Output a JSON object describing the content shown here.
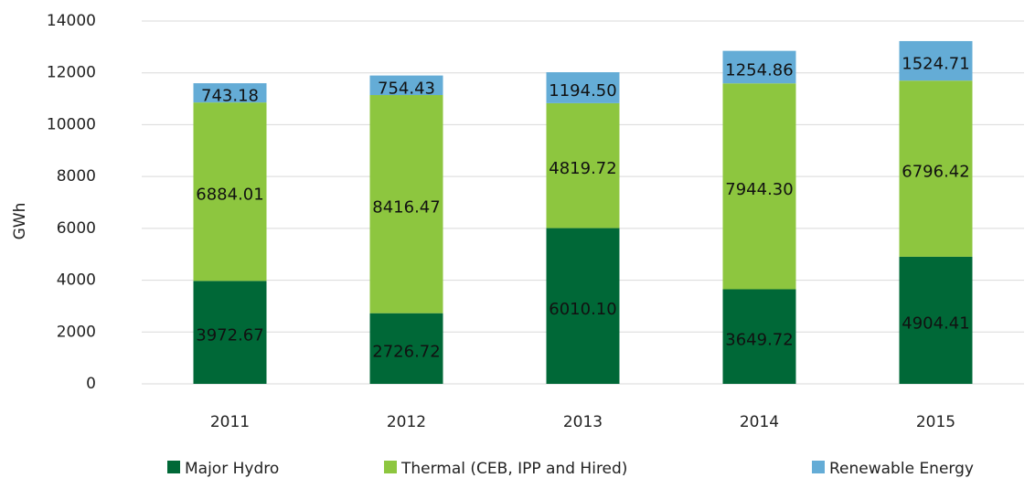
{
  "chart_data": {
    "type": "stacked_bar",
    "y_label": "GWh",
    "categories": [
      "2011",
      "2012",
      "2013",
      "2014",
      "2015"
    ],
    "series": [
      {
        "name": "Major Hydro",
        "color": "#006837",
        "values": [
          3972.67,
          2726.72,
          6010.1,
          3649.72,
          4904.41
        ],
        "value_labels": [
          "3972.67",
          "2726.72",
          "6010.10",
          "3649.72",
          "4904.41"
        ]
      },
      {
        "name": "Thermal (CEB, IPP and Hired)",
        "color": "#8dc63f",
        "values": [
          6884.01,
          8416.47,
          4819.72,
          7944.3,
          6796.42
        ],
        "value_labels": [
          "6884.01",
          "8416.47",
          "4819.72",
          "7944.30",
          "6796.42"
        ]
      },
      {
        "name": "Renewable Energy",
        "color": "#64acd6",
        "values": [
          743.18,
          754.43,
          1194.5,
          1254.86,
          1524.71
        ],
        "value_labels": [
          "743.18",
          "754.43",
          "1194.50",
          "1254.86",
          "1524.71"
        ]
      }
    ],
    "ylim": [
      0,
      14000
    ],
    "yticks": [
      0,
      2000,
      4000,
      6000,
      8000,
      10000,
      12000,
      14000
    ],
    "grid": true,
    "legend": "bottom"
  }
}
